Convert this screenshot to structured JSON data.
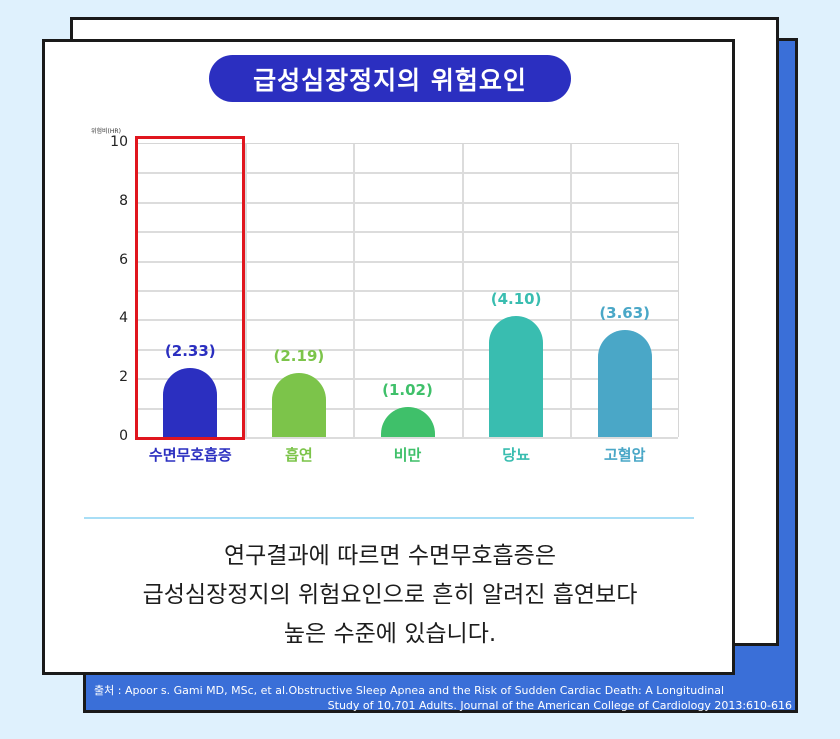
{
  "title": "급성심장정지의 위험요인",
  "colors": {
    "background": "#dff1fd",
    "panel_blue": "#3a6fd8",
    "title_pill": "#2b2fc0",
    "highlight": "#e0161e",
    "divider": "#a8def6"
  },
  "chart_data": {
    "type": "bar",
    "title": "급성심장정지의 위험요인",
    "ylabel": "위험비(HR)",
    "xlabel": "",
    "ylim": [
      0,
      10
    ],
    "yticks": [
      0,
      2,
      4,
      6,
      8,
      10
    ],
    "grid": true,
    "categories": [
      "수면무호흡증",
      "흡연",
      "비만",
      "당뇨",
      "고혈압"
    ],
    "values": [
      2.33,
      2.19,
      1.02,
      4.1,
      3.63
    ],
    "value_labels": [
      "(2.33)",
      "(2.19)",
      "(1.02)",
      "(4.10)",
      "(3.63)"
    ],
    "bar_colors": [
      "#2b2fc0",
      "#7cc44a",
      "#3fc06a",
      "#39bdb0",
      "#4aa7c7"
    ],
    "highlighted_category": "수면무호흡증"
  },
  "summary": {
    "line1": "연구결과에 따르면 수면무호흡증은",
    "line2": "급성심장정지의 위험요인으로 흔히 알려진 흡연보다",
    "line3": "높은 수준에 있습니다."
  },
  "source": {
    "line1": "출처 : Apoor s. Gami MD, MSc, et al.Obstructive Sleep Apnea and the Risk of Sudden Cardiac Death: A Longitudinal",
    "line2": "Study of 10,701 Adults. Journal of the American College of Cardiology 2013:610-616"
  }
}
